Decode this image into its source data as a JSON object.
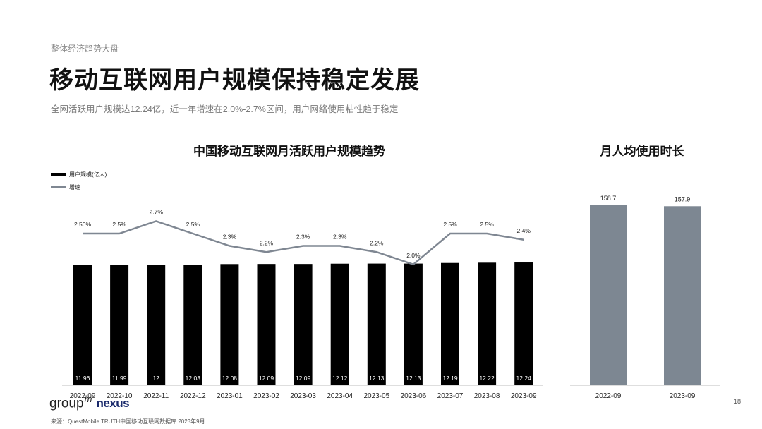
{
  "header": {
    "kicker": "整体经济趋势大盘",
    "title": "移动互联网用户规模保持稳定发展",
    "subtitle": "全网活跃用户规模达12.24亿，近一年增速在2.0%-2.7%区间，用户网络使用粘性趋于稳定"
  },
  "footer": {
    "source": "来源：QuestMobile TRUTH中国移动互联网数据库 2023年9月",
    "page_number": "18",
    "logo_group": "group",
    "logo_m": "m",
    "logo_nexus": "nexus"
  },
  "colors": {
    "bar": "#000000",
    "line": "#7f8792",
    "bar2": "#7d8792"
  },
  "chart_data": [
    {
      "type": "bar+line",
      "title": "中国移动互联网月活跃用户规模趋势",
      "legend": [
        "用户规模(亿人)",
        "增速"
      ],
      "legend_position": "top-left",
      "categories": [
        "2022-09",
        "2022-10",
        "2022-11",
        "2022-12",
        "2023-01",
        "2023-02",
        "2023-03",
        "2023-04",
        "2023-05",
        "2023-06",
        "2023-07",
        "2023-08",
        "2023-09"
      ],
      "series": [
        {
          "name": "用户规模(亿人)",
          "type": "bar",
          "values": [
            11.96,
            11.99,
            12,
            12.03,
            12.08,
            12.09,
            12.09,
            12.12,
            12.13,
            12.13,
            12.19,
            12.22,
            12.24
          ],
          "labels": [
            "11.96",
            "11.99",
            "12",
            "12.03",
            "12.08",
            "12.09",
            "12.09",
            "12.12",
            "12.13",
            "12.13",
            "12.19",
            "12.22",
            "12.24"
          ]
        },
        {
          "name": "增速",
          "type": "line",
          "values": [
            2.5,
            2.5,
            2.7,
            2.5,
            2.3,
            2.2,
            2.3,
            2.3,
            2.2,
            2.0,
            2.5,
            2.5,
            2.4
          ],
          "labels": [
            "2.50%",
            "2.5%",
            "2.7%",
            "2.5%",
            "2.3%",
            "2.2%",
            "2.3%",
            "2.3%",
            "2.2%",
            "2.0%",
            "2.5%",
            "2.5%",
            "2.4%"
          ]
        }
      ],
      "grid": false
    },
    {
      "type": "bar",
      "title": "月人均使用时长",
      "categories": [
        "2022-09",
        "2023-09"
      ],
      "values": [
        158.7,
        157.9
      ],
      "labels": [
        "158.7",
        "157.9"
      ],
      "grid": false
    }
  ]
}
